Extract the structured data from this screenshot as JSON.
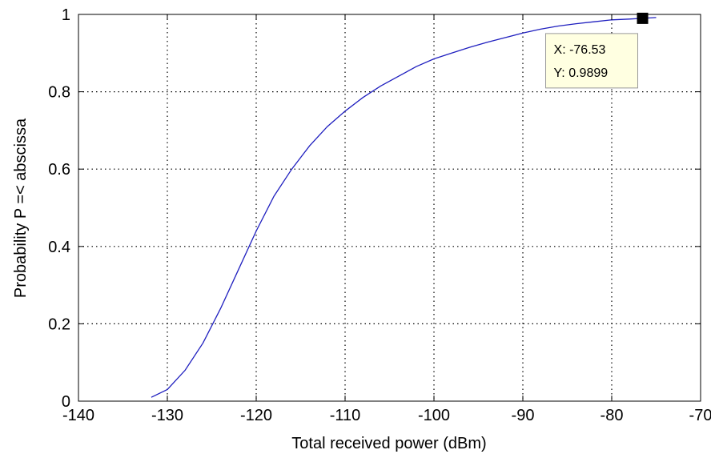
{
  "chart_data": {
    "type": "line",
    "title": "",
    "xlabel": "Total received power (dBm)",
    "ylabel": "Probability P =< abscissa",
    "xlim": [
      -140,
      -70
    ],
    "ylim": [
      0,
      1
    ],
    "xticks": [
      "-140",
      "-130",
      "-120",
      "-110",
      "-100",
      "-90",
      "-80",
      "-70"
    ],
    "yticks": [
      "0",
      "0.2",
      "0.4",
      "0.6",
      "0.8",
      "1"
    ],
    "grid": true,
    "series": [
      {
        "color": "#1f1fbf",
        "x": [
          -131.8,
          -130,
          -128,
          -126,
          -124,
          -122,
          -120,
          -118,
          -116,
          -114,
          -112,
          -110,
          -108,
          -106,
          -104,
          -102,
          -100,
          -98,
          -96,
          -94,
          -92,
          -90,
          -88,
          -86,
          -84,
          -82,
          -80,
          -78,
          -76.53,
          -75
        ],
        "y": [
          0.01,
          0.03,
          0.08,
          0.15,
          0.24,
          0.34,
          0.44,
          0.53,
          0.6,
          0.66,
          0.71,
          0.75,
          0.785,
          0.815,
          0.84,
          0.865,
          0.885,
          0.9,
          0.915,
          0.928,
          0.94,
          0.952,
          0.962,
          0.97,
          0.976,
          0.981,
          0.986,
          0.988,
          0.9899,
          0.992
        ]
      }
    ],
    "datatip": {
      "x": -76.53,
      "y": 0.9899,
      "x_text": "X: -76.53",
      "y_text": "Y: 0.9899"
    }
  }
}
